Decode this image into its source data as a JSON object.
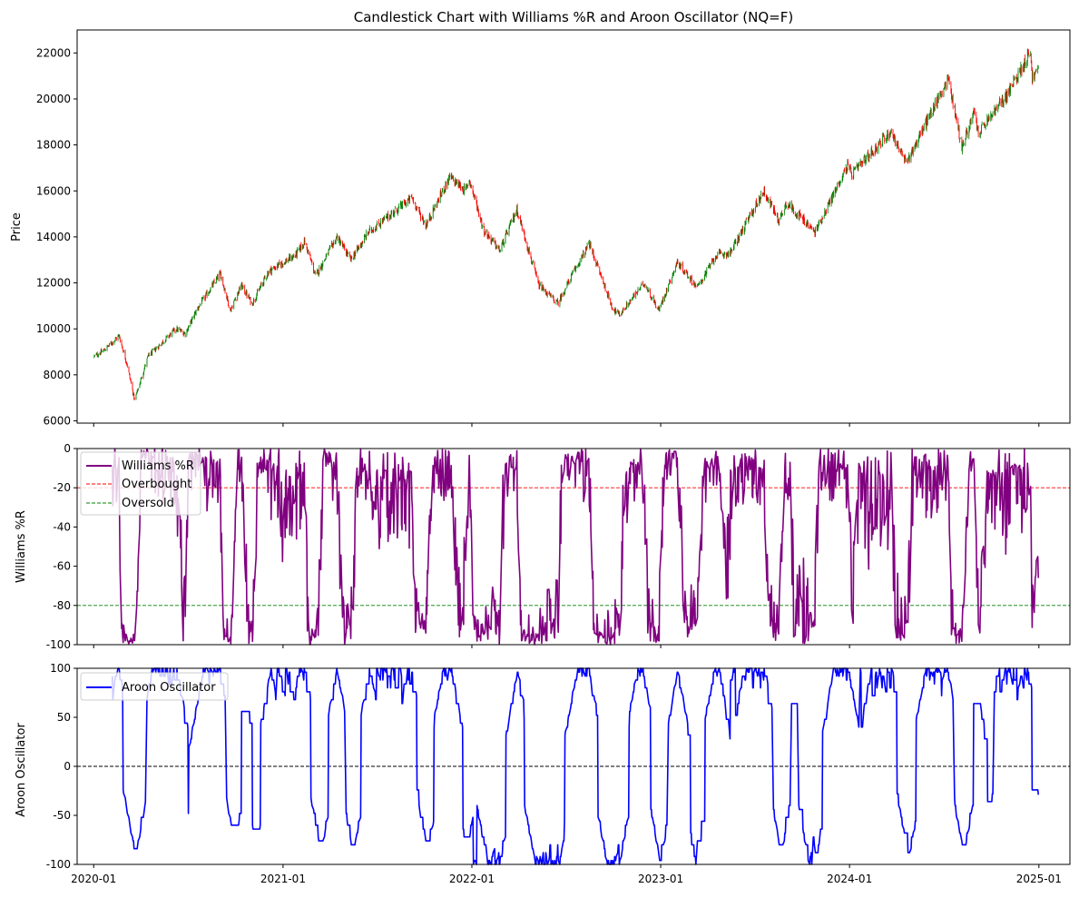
{
  "chart_data": [
    {
      "type": "candlestick",
      "title": "Candlestick Chart with Williams %R and Aroon Oscillator (NQ=F)",
      "ylabel": "Price",
      "ylim": [
        5900,
        23000
      ],
      "yticks": [
        6000,
        8000,
        10000,
        12000,
        14000,
        16000,
        18000,
        20000,
        22000
      ],
      "xlim": [
        "2019-11-30",
        "2025-03-02"
      ],
      "xticks": [
        "2020-01",
        "2021-01",
        "2022-01",
        "2023-01",
        "2024-01",
        "2025-01"
      ],
      "show_xtick_labels": false,
      "grid": false,
      "colors": {
        "up": "#008000",
        "down": "#ff0000"
      },
      "price_path": [
        [
          "2020-01-02",
          8800
        ],
        [
          "2020-01-20",
          9050
        ],
        [
          "2020-02-19",
          9700
        ],
        [
          "2020-03-05",
          8500
        ],
        [
          "2020-03-20",
          6900
        ],
        [
          "2020-04-15",
          8800
        ],
        [
          "2020-06-08",
          10000
        ],
        [
          "2020-06-26",
          9800
        ],
        [
          "2020-07-20",
          10900
        ],
        [
          "2020-09-02",
          12400
        ],
        [
          "2020-09-21",
          10800
        ],
        [
          "2020-10-12",
          11900
        ],
        [
          "2020-11-02",
          11100
        ],
        [
          "2020-12-04",
          12500
        ],
        [
          "2021-01-25",
          13200
        ],
        [
          "2021-02-12",
          13800
        ],
        [
          "2021-03-05",
          12300
        ],
        [
          "2021-04-15",
          14000
        ],
        [
          "2021-05-12",
          13000
        ],
        [
          "2021-06-15",
          14200
        ],
        [
          "2021-09-07",
          15700
        ],
        [
          "2021-10-04",
          14500
        ],
        [
          "2021-11-19",
          16600
        ],
        [
          "2021-12-20",
          16000
        ],
        [
          "2021-12-27",
          16500
        ],
        [
          "2022-01-24",
          14300
        ],
        [
          "2022-02-24",
          13400
        ],
        [
          "2022-03-29",
          15200
        ],
        [
          "2022-05-10",
          11900
        ],
        [
          "2022-06-16",
          11100
        ],
        [
          "2022-07-15",
          12400
        ],
        [
          "2022-08-16",
          13700
        ],
        [
          "2022-09-30",
          10900
        ],
        [
          "2022-10-13",
          10600
        ],
        [
          "2022-11-30",
          12000
        ],
        [
          "2022-12-28",
          10800
        ],
        [
          "2023-02-02",
          12900
        ],
        [
          "2023-03-13",
          11800
        ],
        [
          "2023-04-18",
          13200
        ],
        [
          "2023-05-15",
          13300
        ],
        [
          "2023-07-19",
          16000
        ],
        [
          "2023-08-18",
          14700
        ],
        [
          "2023-09-01",
          15500
        ],
        [
          "2023-10-26",
          14200
        ],
        [
          "2023-12-28",
          17100
        ],
        [
          "2024-01-05",
          16700
        ],
        [
          "2024-03-21",
          18600
        ],
        [
          "2024-04-19",
          17200
        ],
        [
          "2024-07-10",
          20900
        ],
        [
          "2024-08-05",
          17900
        ],
        [
          "2024-08-29",
          19400
        ],
        [
          "2024-09-06",
          18500
        ],
        [
          "2024-11-01",
          20200
        ],
        [
          "2024-12-16",
          22100
        ],
        [
          "2024-12-19",
          20900
        ],
        [
          "2024-12-31",
          21300
        ]
      ]
    },
    {
      "type": "line",
      "ylabel": "Williams %R",
      "ylim": [
        -100,
        0
      ],
      "yticks": [
        -100,
        -80,
        -60,
        -40,
        -20,
        0
      ],
      "xlim": [
        "2019-11-30",
        "2025-03-02"
      ],
      "xticks": [
        "2020-01",
        "2021-01",
        "2022-01",
        "2023-01",
        "2024-01",
        "2025-01"
      ],
      "show_xtick_labels": false,
      "grid": false,
      "legend": {
        "position": "top-left",
        "entries": [
          "Williams %R",
          "Overbought",
          "Oversold"
        ]
      },
      "series": [
        {
          "name": "Williams %R",
          "color": "#800080",
          "style": "solid",
          "pattern": "oscillating between about -99 and 0, sampled daily from 2020-01-21 to 2024-12-31",
          "start": "2020-01-21",
          "end": "2024-12-31",
          "last_value": -66
        },
        {
          "name": "Overbought",
          "color": "#ff0000",
          "style": "dashed",
          "y": -20
        },
        {
          "name": "Oversold",
          "color": "#008000",
          "style": "dashed",
          "y": -80
        }
      ]
    },
    {
      "type": "line",
      "ylabel": "Aroon Oscillator",
      "ylim": [
        -100,
        100
      ],
      "yticks": [
        -100,
        -50,
        0,
        50,
        100
      ],
      "xlim": [
        "2019-11-30",
        "2025-03-02"
      ],
      "xticks": [
        "2020-01",
        "2021-01",
        "2022-01",
        "2023-01",
        "2024-01",
        "2025-01"
      ],
      "show_xtick_labels": true,
      "grid": false,
      "legend": {
        "position": "top-left",
        "entries": [
          "Aroon Oscillator"
        ]
      },
      "series": [
        {
          "name": "Aroon Oscillator",
          "color": "#0000ff",
          "style": "solid",
          "pattern": "step-like oscillation between about -93 and 93, sampled daily from 2020-01-21 to 2024-12-31",
          "start": "2020-01-21",
          "end": "2024-12-31",
          "last_value": -29
        },
        {
          "name": "",
          "color": "#000000",
          "style": "dashed",
          "y": 0
        }
      ]
    }
  ]
}
